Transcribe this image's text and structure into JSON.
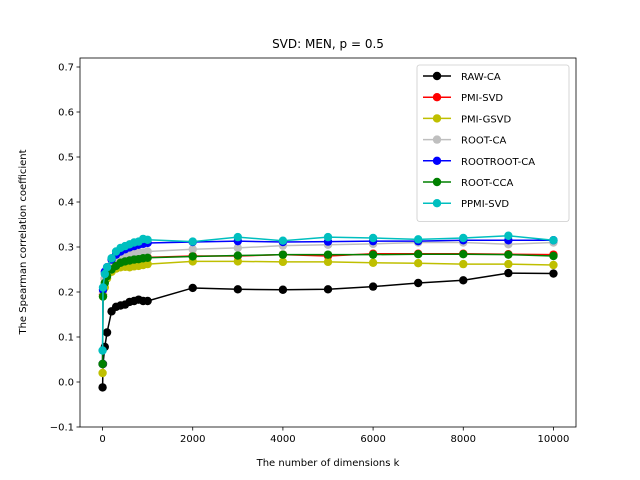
{
  "chart_data": {
    "type": "line",
    "title": "SVD: MEN, p = 0.5",
    "xlabel": "The number of dimensions k",
    "ylabel": "The Spearman correlation coefficient",
    "xlim": [
      -500,
      10500
    ],
    "ylim": [
      -0.1,
      0.72
    ],
    "xticks": [
      0,
      2000,
      4000,
      6000,
      8000,
      10000
    ],
    "yticks": [
      -0.1,
      0.0,
      0.1,
      0.2,
      0.3,
      0.4,
      0.5,
      0.6,
      0.7
    ],
    "xtick_labels": [
      "0",
      "2000",
      "4000",
      "6000",
      "8000",
      "10000"
    ],
    "ytick_labels": [
      "−0.1",
      "0.0",
      "0.1",
      "0.2",
      "0.3",
      "0.4",
      "0.5",
      "0.6",
      "0.7"
    ],
    "legend_position": "top-right",
    "grid": false,
    "x": [
      1,
      10,
      50,
      100,
      200,
      300,
      400,
      500,
      600,
      700,
      800,
      900,
      1000,
      2000,
      3000,
      4000,
      5000,
      6000,
      7000,
      8000,
      9000,
      10000
    ],
    "series": [
      {
        "name": "RAW-CA",
        "color": "#000000",
        "values": [
          -0.012,
          0.04,
          0.078,
          0.11,
          0.157,
          0.167,
          0.17,
          0.172,
          0.178,
          0.18,
          0.183,
          0.18,
          0.18,
          0.209,
          0.206,
          0.205,
          0.206,
          0.212,
          0.22,
          0.226,
          0.242,
          0.241
        ]
      },
      {
        "name": "PMI-SVD",
        "color": "#ff0000",
        "values": [
          0.04,
          0.195,
          0.23,
          0.24,
          0.255,
          0.262,
          0.266,
          0.27,
          0.273,
          0.275,
          0.276,
          0.277,
          0.277,
          0.28,
          0.28,
          0.283,
          0.28,
          0.285,
          0.285,
          0.285,
          0.284,
          0.283
        ]
      },
      {
        "name": "PMI-GSVD",
        "color": "#bfbf00",
        "values": [
          0.02,
          0.19,
          0.21,
          0.23,
          0.245,
          0.252,
          0.255,
          0.256,
          0.255,
          0.257,
          0.258,
          0.26,
          0.262,
          0.268,
          0.268,
          0.267,
          0.267,
          0.265,
          0.264,
          0.262,
          0.262,
          0.26
        ]
      },
      {
        "name": "ROOT-CA",
        "color": "#bfbfbf",
        "values": [
          0.04,
          0.2,
          0.23,
          0.245,
          0.262,
          0.27,
          0.277,
          0.28,
          0.282,
          0.285,
          0.287,
          0.288,
          0.29,
          0.295,
          0.298,
          0.303,
          0.305,
          0.307,
          0.31,
          0.31,
          0.306,
          0.31
        ]
      },
      {
        "name": "ROOTROOT-CA",
        "color": "#0000ff",
        "values": [
          0.04,
          0.205,
          0.245,
          0.255,
          0.272,
          0.283,
          0.29,
          0.295,
          0.299,
          0.302,
          0.305,
          0.307,
          0.309,
          0.311,
          0.313,
          0.311,
          0.312,
          0.313,
          0.313,
          0.315,
          0.315,
          0.315
        ]
      },
      {
        "name": "ROOT-CCA",
        "color": "#008000",
        "values": [
          0.04,
          0.19,
          0.22,
          0.235,
          0.25,
          0.258,
          0.265,
          0.268,
          0.27,
          0.272,
          0.273,
          0.275,
          0.276,
          0.279,
          0.281,
          0.283,
          0.283,
          0.283,
          0.284,
          0.284,
          0.283,
          0.28
        ]
      },
      {
        "name": "PPMI-SVD",
        "color": "#00bfbf",
        "values": [
          0.07,
          0.21,
          0.24,
          0.255,
          0.275,
          0.29,
          0.298,
          0.302,
          0.306,
          0.31,
          0.312,
          0.318,
          0.316,
          0.312,
          0.322,
          0.314,
          0.322,
          0.32,
          0.317,
          0.32,
          0.325,
          0.315
        ]
      }
    ]
  }
}
